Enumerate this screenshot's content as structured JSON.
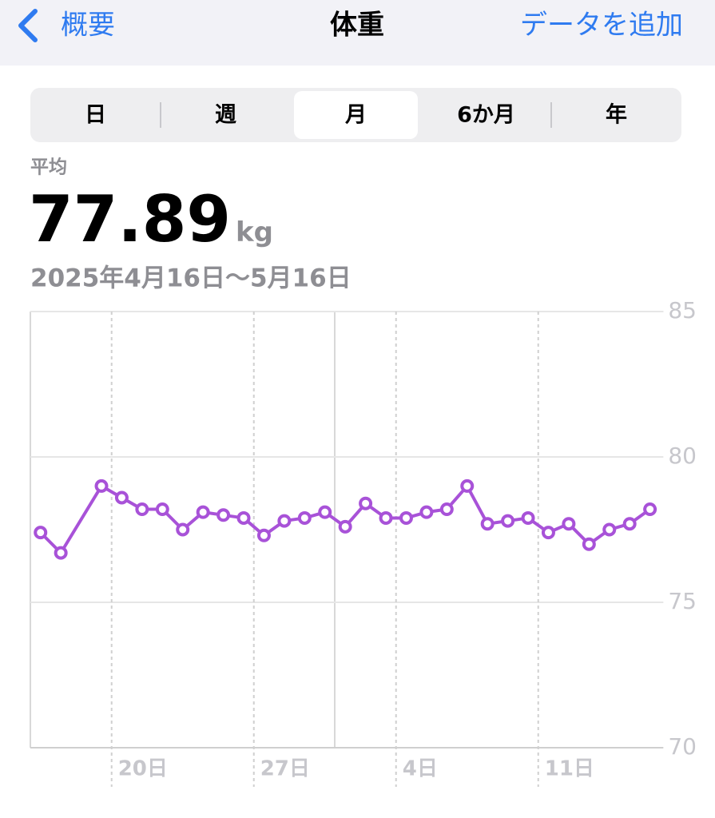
{
  "nav": {
    "back": "概要",
    "title": "体重",
    "action": "データを追加"
  },
  "segments": [
    "日",
    "週",
    "月",
    "6か月",
    "年"
  ],
  "selected_segment": 2,
  "summary": {
    "label": "平均",
    "value": 77.89,
    "unit": "kg",
    "range": "2025年4月16日～5月16日"
  },
  "chart_data": {
    "type": "line",
    "categories": [
      null,
      null,
      null,
      null,
      "20日",
      null,
      null,
      null,
      null,
      null,
      null,
      "27日",
      null,
      null,
      null,
      null,
      null,
      null,
      "4日",
      null,
      null,
      null,
      null,
      null,
      null,
      "11日",
      null,
      null,
      null,
      null,
      null
    ],
    "values": [
      77.4,
      76.7,
      null,
      79.0,
      78.6,
      78.2,
      78.2,
      77.5,
      78.1,
      78.0,
      77.9,
      77.3,
      77.8,
      77.9,
      78.1,
      77.6,
      78.4,
      77.9,
      77.9,
      78.1,
      78.2,
      79.0,
      77.7,
      77.8,
      77.9,
      77.4,
      77.7,
      77.0,
      77.5,
      77.7,
      78.2
    ],
    "color": "#a852d8",
    "ylim": [
      70,
      85
    ],
    "yticks": [
      70,
      75,
      80,
      85
    ],
    "grid": true,
    "y_axis_side": "right"
  }
}
